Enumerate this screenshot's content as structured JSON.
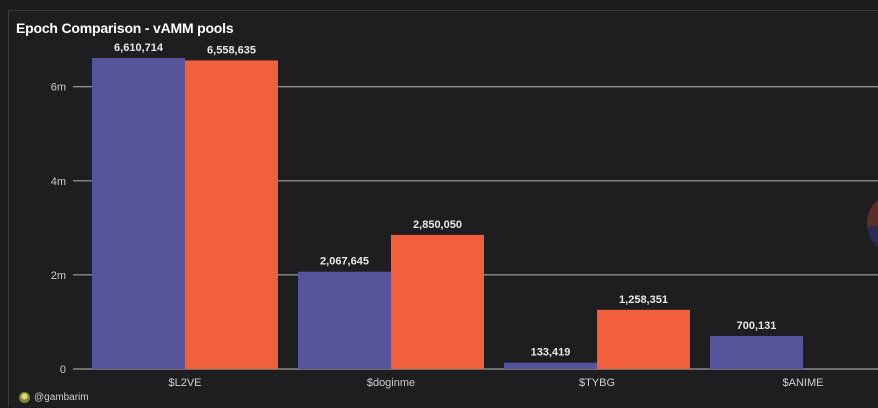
{
  "title": "Epoch Comparison - vAMM pools",
  "footer": {
    "handle": "@gambarim"
  },
  "colors": {
    "series_a": "#56549a",
    "series_b": "#f15f3c",
    "grid": "#d0d0d0",
    "text": "#cfcfcf",
    "label": "#e8e8e8"
  },
  "chart_data": {
    "type": "bar",
    "categories": [
      "$L2VE",
      "$doginme",
      "$TYBG",
      "$ANIME"
    ],
    "series": [
      {
        "values": [
          6610714,
          2067645,
          133419,
          700131
        ],
        "labels": [
          "6,610,714",
          "2,067,645",
          "133,419",
          "700,131"
        ],
        "color": "#56549a"
      },
      {
        "values": [
          6558635,
          2850050,
          1258351,
          null
        ],
        "labels": [
          "6,558,635",
          "2,850,050",
          "1,258,351",
          ""
        ],
        "color": "#f15f3c"
      }
    ],
    "y_ticks": [
      0,
      2000000,
      4000000,
      6000000
    ],
    "y_tick_labels": [
      "0",
      "2m",
      "4m",
      "6m"
    ],
    "ylim": [
      0,
      6610714
    ],
    "grid": true
  }
}
